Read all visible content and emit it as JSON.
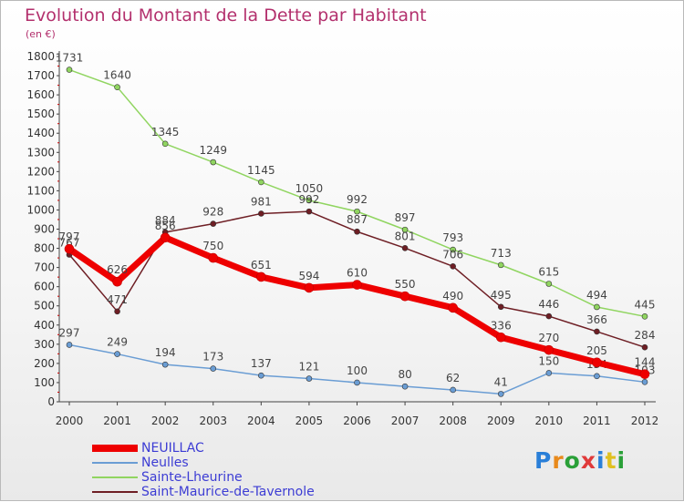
{
  "chart_data": {
    "type": "line",
    "title": "Evolution du Montant de la Dette par Habitant",
    "subtitle": "(en €)",
    "x": [
      "2000",
      "2001",
      "2002",
      "2003",
      "2004",
      "2005",
      "2006",
      "2007",
      "2008",
      "2009",
      "2010",
      "2011",
      "2012"
    ],
    "ylim": [
      0,
      1800
    ],
    "yticks": [
      0,
      100,
      200,
      300,
      400,
      500,
      600,
      700,
      800,
      900,
      1000,
      1100,
      1200,
      1300,
      1400,
      1500,
      1600,
      1700,
      1800
    ],
    "grid": false,
    "legend": "bottom-left",
    "series": [
      {
        "name": "Sainte-Lheurine",
        "color": "#90d560",
        "values": [
          1731,
          1640,
          1345,
          1249,
          1145,
          1050,
          992,
          897,
          793,
          713,
          615,
          494,
          445
        ]
      },
      {
        "name": "Saint-Maurice-de-Tavernole",
        "color": "#6e1e24",
        "values": [
          767,
          471,
          884,
          928,
          981,
          992,
          887,
          801,
          706,
          495,
          446,
          366,
          284
        ]
      },
      {
        "name": "Neulles",
        "color": "#6a9dd4",
        "values": [
          297,
          249,
          194,
          173,
          137,
          121,
          100,
          80,
          62,
          41,
          150,
          134,
          103
        ]
      },
      {
        "name": "NEUILLAC",
        "color": "#ee0000",
        "values": [
          797,
          626,
          856,
          750,
          651,
          594,
          610,
          550,
          490,
          336,
          270,
          205,
          144
        ]
      }
    ]
  },
  "legend_order": [
    "NEUILLAC",
    "Neulles",
    "Sainte-Lheurine",
    "Saint-Maurice-de-Tavernole"
  ],
  "logo": {
    "text": "Proxiti"
  }
}
